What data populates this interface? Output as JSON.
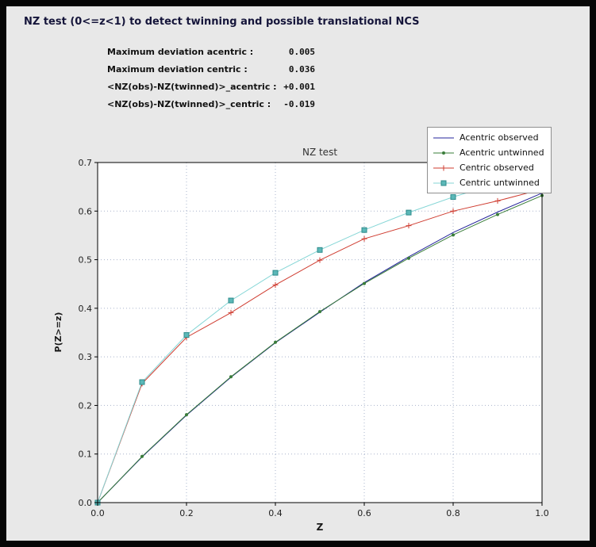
{
  "header": {
    "title": "NZ test (0<=z<1) to detect twinning and possible translational NCS"
  },
  "stats": [
    {
      "label": "Maximum deviation acentric :",
      "value": "0.005"
    },
    {
      "label": "Maximum deviation centric :",
      "value": "0.036"
    },
    {
      "label": "<NZ(obs)-NZ(twinned)>_acentric :",
      "value": "+0.001"
    },
    {
      "label": "<NZ(obs)-NZ(twinned)>_centric :",
      "value": "-0.019"
    }
  ],
  "chart_data": {
    "type": "line",
    "title": "NZ test",
    "xlabel": "Z",
    "ylabel": "P(Z>=z)",
    "xlim": [
      0.0,
      1.0
    ],
    "ylim": [
      0.0,
      0.7
    ],
    "xticks": [
      0.0,
      0.2,
      0.4,
      0.6,
      0.8,
      1.0
    ],
    "yticks": [
      0.0,
      0.1,
      0.2,
      0.3,
      0.4,
      0.5,
      0.6,
      0.7
    ],
    "grid": true,
    "grid_color": "#a9b4cc",
    "legend_position": "upper right",
    "x": [
      0.0,
      0.1,
      0.2,
      0.3,
      0.4,
      0.5,
      0.6,
      0.7,
      0.8,
      0.9,
      1.0
    ],
    "series": [
      {
        "name": "Acentric observed",
        "color": "#24249b",
        "marker": "none",
        "values": [
          0.0,
          0.094,
          0.18,
          0.258,
          0.329,
          0.392,
          0.453,
          0.506,
          0.556,
          0.598,
          0.637
        ]
      },
      {
        "name": "Acentric untwinned",
        "color": "#3a7d3a",
        "marker": "dot",
        "values": [
          0.0,
          0.095,
          0.181,
          0.259,
          0.33,
          0.393,
          0.451,
          0.503,
          0.551,
          0.593,
          0.632
        ]
      },
      {
        "name": "Centric observed",
        "color": "#cf3b2f",
        "marker": "plus",
        "values": [
          0.0,
          0.245,
          0.34,
          0.391,
          0.448,
          0.499,
          0.543,
          0.57,
          0.6,
          0.621,
          0.645
        ]
      },
      {
        "name": "Centric untwinned",
        "color": "#85d6d6",
        "marker": "square",
        "marker_fill": "#5cb8b8",
        "marker_edge": "#2e8b8b",
        "values": [
          0.0,
          0.248,
          0.345,
          0.416,
          0.473,
          0.52,
          0.561,
          0.597,
          0.629,
          0.657,
          0.683
        ]
      }
    ]
  }
}
